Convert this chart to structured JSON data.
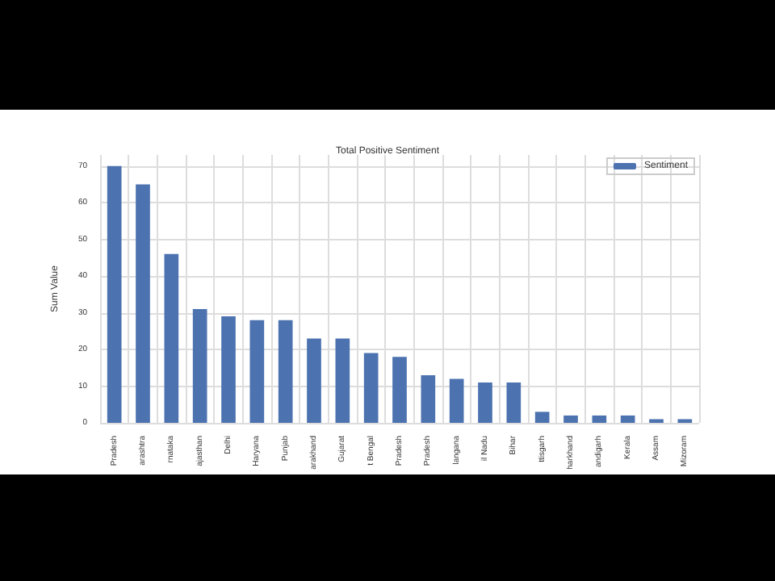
{
  "chart_data": {
    "type": "bar",
    "title": "Total Positive Sentiment",
    "ylabel": "Sum Value",
    "categories": [
      "Pradesh",
      "arashtra",
      "rnataka",
      "ajasthan",
      "Delhi",
      "Haryana",
      "Punjab",
      "arakhand",
      "Gujarat",
      "t Bengal",
      "Pradesh",
      "Pradesh",
      "langana",
      "il Nadu",
      "Bihar",
      "ttisgarh",
      "harkhand",
      "andigarh",
      "Kerala",
      "Assam",
      "Mizoram"
    ],
    "series": [
      {
        "name": "Sentiment",
        "color": "#4c72b0",
        "values": [
          70,
          65,
          46,
          31,
          29,
          28,
          28,
          23,
          23,
          19,
          18,
          13,
          12,
          11,
          11,
          3,
          2,
          2,
          2,
          1,
          1
        ]
      }
    ],
    "ylim": [
      0,
      73
    ],
    "yticks": [
      0,
      10,
      20,
      30,
      40,
      50,
      60,
      70
    ],
    "grid": true,
    "legend": "top right"
  }
}
